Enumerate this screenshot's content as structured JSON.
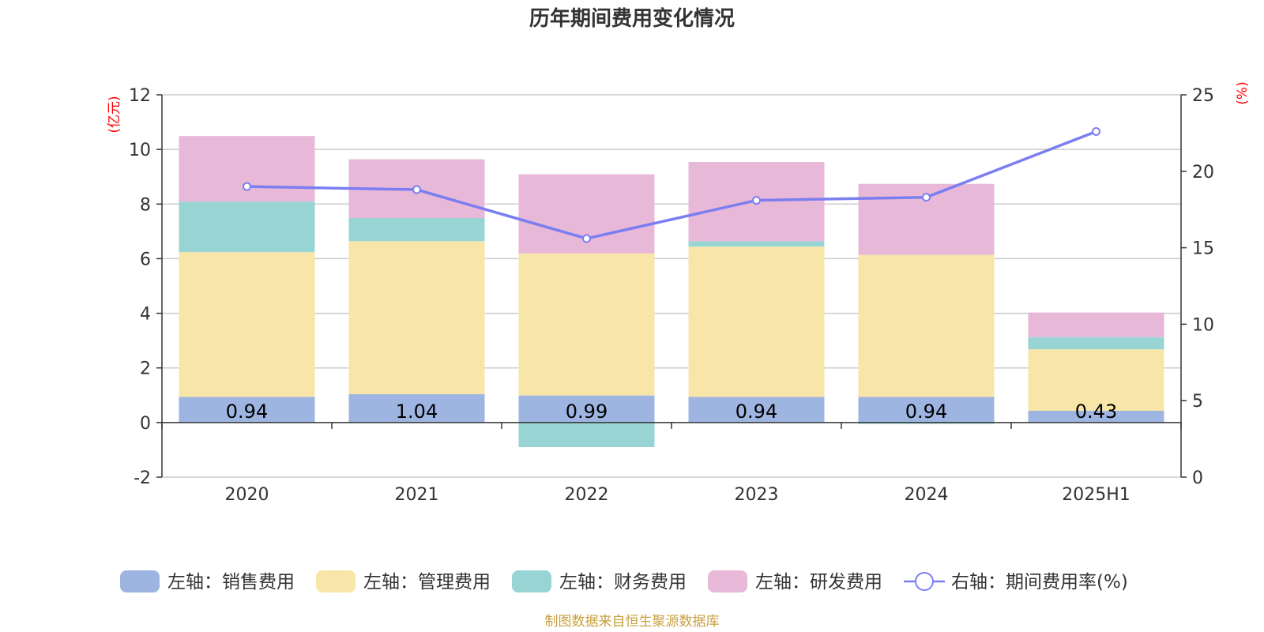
{
  "chart_data": {
    "type": "bar",
    "title": "历年期间费用变化情况",
    "categories": [
      "2020",
      "2021",
      "2022",
      "2023",
      "2024",
      "2025H1"
    ],
    "left_axis": {
      "unit": "(亿元)",
      "ylim": [
        -2,
        12
      ],
      "ticks": [
        -2,
        0,
        2,
        4,
        6,
        8,
        10,
        12
      ]
    },
    "right_axis": {
      "unit": "(%)",
      "ylim": [
        0,
        25
      ],
      "ticks": [
        0,
        5,
        10,
        15,
        20,
        25
      ]
    },
    "series": [
      {
        "name": "左轴：销售费用",
        "type": "bar",
        "stack": "total",
        "axis": "left",
        "color": "#9db5e0",
        "values": [
          0.94,
          1.04,
          0.99,
          0.94,
          0.94,
          0.43
        ],
        "labels": [
          "0.94",
          "1.04",
          "0.99",
          "0.94",
          "0.94",
          "0.43"
        ]
      },
      {
        "name": "左轴：管理费用",
        "type": "bar",
        "stack": "total",
        "axis": "left",
        "color": "#f8e6a8",
        "values": [
          5.3,
          5.6,
          5.2,
          5.5,
          5.2,
          2.25
        ]
      },
      {
        "name": "左轴：财务费用",
        "type": "bar",
        "stack": "total",
        "axis": "left",
        "color": "#98d4d4",
        "values": [
          1.85,
          0.85,
          -0.9,
          0.2,
          -0.05,
          0.45
        ]
      },
      {
        "name": "左轴：研发费用",
        "type": "bar",
        "stack": "total",
        "axis": "left",
        "color": "#e8b8d8",
        "values": [
          2.4,
          2.15,
          2.9,
          2.9,
          2.6,
          0.9
        ]
      },
      {
        "name": "右轴：期间费用率(%)",
        "type": "line",
        "axis": "right",
        "color": "#7b7ef0",
        "values": [
          19.0,
          18.8,
          15.6,
          18.1,
          18.3,
          22.6
        ]
      }
    ],
    "grid": true,
    "legend_position": "bottom"
  },
  "footer": {
    "source": "制图数据来自恒生聚源数据库"
  }
}
